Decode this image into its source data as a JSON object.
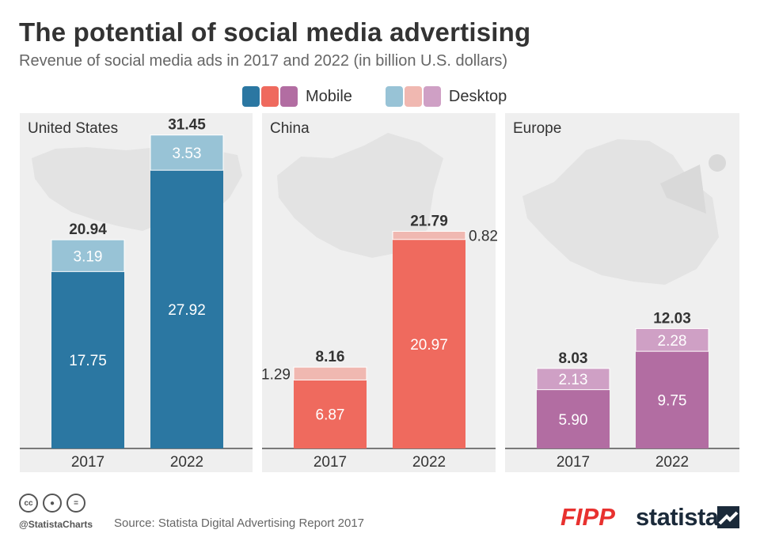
{
  "header": {
    "title": "The potential of social media advertising",
    "subtitle": "Revenue of social media ads in 2017 and 2022 (in billion U.S. dollars)"
  },
  "legend": {
    "mobile": "Mobile",
    "desktop": "Desktop"
  },
  "colors": {
    "panel_bg": "#efefef",
    "map": "#e3e3e3",
    "us_mobile": "#2b77a2",
    "us_desktop": "#98c3d6",
    "china_mobile": "#ef6a5e",
    "china_desktop": "#f0b8b1",
    "europe_mobile": "#b26da2",
    "europe_desktop": "#cfa0c5"
  },
  "chart_data": [
    {
      "type": "bar",
      "stacked": true,
      "region": "United States",
      "categories": [
        "2017",
        "2022"
      ],
      "series": [
        {
          "name": "Mobile",
          "values": [
            17.75,
            27.92
          ]
        },
        {
          "name": "Desktop",
          "values": [
            3.19,
            3.53
          ]
        }
      ],
      "totals": [
        20.94,
        31.45
      ],
      "ylim": [
        0,
        32
      ]
    },
    {
      "type": "bar",
      "stacked": true,
      "region": "China",
      "categories": [
        "2017",
        "2022"
      ],
      "series": [
        {
          "name": "Mobile",
          "values": [
            6.87,
            20.97
          ]
        },
        {
          "name": "Desktop",
          "values": [
            1.29,
            0.82
          ]
        }
      ],
      "totals": [
        8.16,
        21.79
      ],
      "ylim": [
        0,
        32
      ]
    },
    {
      "type": "bar",
      "stacked": true,
      "region": "Europe",
      "categories": [
        "2017",
        "2022"
      ],
      "series": [
        {
          "name": "Mobile",
          "values": [
            5.9,
            9.75
          ]
        },
        {
          "name": "Desktop",
          "values": [
            2.13,
            2.28
          ]
        }
      ],
      "totals": [
        8.03,
        12.03
      ],
      "ylim": [
        0,
        32
      ]
    }
  ],
  "footer": {
    "handle": "@StatistaCharts",
    "source": "Source: Statista Digital Advertising Report 2017",
    "logo_fipp": "FIPP",
    "logo_statista": "statista"
  }
}
